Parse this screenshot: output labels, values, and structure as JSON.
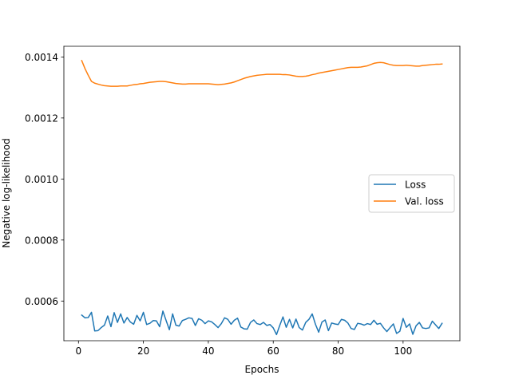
{
  "chart_data": {
    "type": "line",
    "title": "",
    "xlabel": "Epochs",
    "ylabel": "Negative log-likelihood",
    "xlim": [
      -4.5,
      117.5
    ],
    "ylim": [
      0.00047,
      0.001435
    ],
    "xticks": [
      0,
      20,
      40,
      60,
      80,
      100
    ],
    "xtick_labels": [
      "0",
      "20",
      "40",
      "60",
      "80",
      "100"
    ],
    "yticks": [
      0.0006,
      0.0008,
      0.001,
      0.0012,
      0.0014
    ],
    "ytick_labels": [
      "0.0006",
      "0.0008",
      "0.0010",
      "0.0012",
      "0.0014"
    ],
    "grid": false,
    "legend_position": "center-right",
    "series": [
      {
        "name": "Loss",
        "color": "#1f77b4",
        "x": [
          1,
          2,
          3,
          4,
          5,
          6,
          7,
          8,
          9,
          10,
          11,
          12,
          13,
          14,
          15,
          16,
          17,
          18,
          19,
          20,
          21,
          22,
          23,
          24,
          25,
          26,
          27,
          28,
          29,
          30,
          31,
          32,
          33,
          34,
          35,
          36,
          37,
          38,
          39,
          40,
          41,
          42,
          43,
          44,
          45,
          46,
          47,
          48,
          49,
          50,
          51,
          52,
          53,
          54,
          55,
          56,
          57,
          58,
          59,
          60,
          61,
          62,
          63,
          64,
          65,
          66,
          67,
          68,
          69,
          70,
          71,
          72,
          73,
          74,
          75,
          76,
          77,
          78,
          79,
          80,
          81,
          82,
          83,
          84,
          85,
          86,
          87,
          88,
          89,
          90,
          91,
          92,
          93,
          94,
          95,
          96,
          97,
          98,
          99,
          100,
          101,
          102,
          103,
          104,
          105,
          106,
          107,
          108,
          109,
          110,
          111,
          112
        ],
        "values": [
          0.000554,
          0.000545,
          0.000546,
          0.000563,
          0.000502,
          0.000503,
          0.000513,
          0.000521,
          0.000551,
          0.000516,
          0.000562,
          0.00053,
          0.000558,
          0.000528,
          0.000546,
          0.000531,
          0.000524,
          0.000553,
          0.000535,
          0.000563,
          0.000523,
          0.000527,
          0.000536,
          0.000535,
          0.000516,
          0.000567,
          0.000536,
          0.000506,
          0.000558,
          0.000521,
          0.000518,
          0.000536,
          0.00054,
          0.000545,
          0.000543,
          0.00052,
          0.000542,
          0.000537,
          0.000526,
          0.000535,
          0.000532,
          0.000523,
          0.000513,
          0.000526,
          0.000545,
          0.00054,
          0.000524,
          0.000537,
          0.000544,
          0.000515,
          0.000509,
          0.000508,
          0.00053,
          0.000538,
          0.000526,
          0.000523,
          0.00053,
          0.00052,
          0.000523,
          0.000512,
          0.00049,
          0.00052,
          0.000548,
          0.000514,
          0.00054,
          0.000512,
          0.000541,
          0.000513,
          0.000505,
          0.00053,
          0.00054,
          0.000558,
          0.000524,
          0.000498,
          0.000531,
          0.000538,
          0.000503,
          0.000528,
          0.000525,
          0.000523,
          0.00054,
          0.000537,
          0.000528,
          0.00051,
          0.000507,
          0.000527,
          0.000525,
          0.000521,
          0.000526,
          0.000523,
          0.000537,
          0.000524,
          0.000527,
          0.000512,
          0.0005,
          0.000513,
          0.000525,
          0.000494,
          0.000501,
          0.000543,
          0.000514,
          0.000525,
          0.000491,
          0.000519,
          0.00053,
          0.000512,
          0.00051,
          0.000512,
          0.000534,
          0.000522,
          0.00051,
          0.000527
        ]
      },
      {
        "name": "Val. loss",
        "color": "#ff7f0e",
        "x": [
          1,
          2,
          3,
          4,
          5,
          6,
          7,
          8,
          9,
          10,
          11,
          12,
          13,
          14,
          15,
          16,
          17,
          18,
          19,
          20,
          21,
          22,
          23,
          24,
          25,
          26,
          27,
          28,
          29,
          30,
          31,
          32,
          33,
          34,
          35,
          36,
          37,
          38,
          39,
          40,
          41,
          42,
          43,
          44,
          45,
          46,
          47,
          48,
          49,
          50,
          51,
          52,
          53,
          54,
          55,
          56,
          57,
          58,
          59,
          60,
          61,
          62,
          63,
          64,
          65,
          66,
          67,
          68,
          69,
          70,
          71,
          72,
          73,
          74,
          75,
          76,
          77,
          78,
          79,
          80,
          81,
          82,
          83,
          84,
          85,
          86,
          87,
          88,
          89,
          90,
          91,
          92,
          93,
          94,
          95,
          96,
          97,
          98,
          99,
          100,
          101,
          102,
          103,
          104,
          105,
          106,
          107,
          108,
          109,
          110,
          111,
          112
        ],
        "values": [
          0.001388,
          0.001362,
          0.00134,
          0.00132,
          0.001314,
          0.001311,
          0.001308,
          0.001306,
          0.001305,
          0.001304,
          0.001304,
          0.001304,
          0.001305,
          0.001305,
          0.001305,
          0.001307,
          0.001309,
          0.00131,
          0.001312,
          0.001313,
          0.001315,
          0.001317,
          0.001318,
          0.001319,
          0.00132,
          0.00132,
          0.001319,
          0.001317,
          0.001315,
          0.001313,
          0.001312,
          0.001311,
          0.001311,
          0.001312,
          0.001312,
          0.001312,
          0.001312,
          0.001312,
          0.001312,
          0.001312,
          0.001311,
          0.00131,
          0.001309,
          0.00131,
          0.001311,
          0.001313,
          0.001315,
          0.001318,
          0.001322,
          0.001326,
          0.00133,
          0.001333,
          0.001336,
          0.001338,
          0.00134,
          0.001341,
          0.001342,
          0.001343,
          0.001343,
          0.001343,
          0.001343,
          0.001343,
          0.001342,
          0.001342,
          0.001341,
          0.001339,
          0.001337,
          0.001336,
          0.001336,
          0.001337,
          0.001339,
          0.001342,
          0.001344,
          0.001347,
          0.001349,
          0.001351,
          0.001353,
          0.001355,
          0.001357,
          0.001359,
          0.001361,
          0.001363,
          0.001365,
          0.001366,
          0.001366,
          0.001366,
          0.001367,
          0.001369,
          0.001371,
          0.001375,
          0.001379,
          0.001381,
          0.001382,
          0.001381,
          0.001378,
          0.001375,
          0.001373,
          0.001372,
          0.001372,
          0.001372,
          0.001373,
          0.001372,
          0.001371,
          0.00137,
          0.00137,
          0.001372,
          0.001373,
          0.001374,
          0.001375,
          0.001376,
          0.001376,
          0.001377
        ]
      }
    ]
  }
}
